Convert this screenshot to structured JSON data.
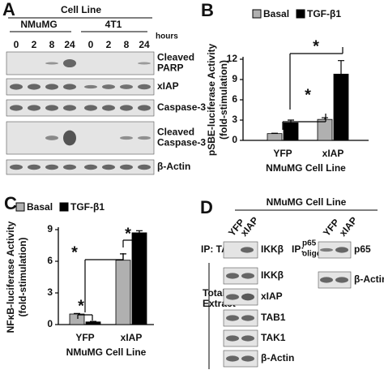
{
  "panel_a": {
    "letter": "A",
    "header": "Cell Line",
    "cell_lines": [
      "NMuMG",
      "4T1"
    ],
    "time_label": "hours",
    "times": [
      "0",
      "2",
      "8",
      "24",
      "0",
      "2",
      "8",
      "24"
    ],
    "blots": [
      [
        "Cleaved",
        "PARP"
      ],
      [
        "xIAP"
      ],
      [
        "Caspase-3"
      ],
      [
        "Cleaved",
        "Caspase-3"
      ],
      [
        "β-Actin"
      ]
    ]
  },
  "chart_data": [
    {
      "type": "bar",
      "letter": "B",
      "y_label": [
        "pSBE-luciferase Activity",
        "(fold-stimulation)"
      ],
      "x_label": "NMuMG Cell Line",
      "categories": [
        "YFP",
        "xIAP"
      ],
      "series": [
        {
          "name": "Basal",
          "color": "#b0b0b0",
          "values": [
            1.0,
            3.1
          ],
          "errors": [
            0.05,
            0.25
          ]
        },
        {
          "name": "TGF-β1",
          "color": "#000000",
          "values": [
            2.6,
            9.8
          ],
          "errors": [
            0.4,
            2.0
          ]
        }
      ],
      "ylim": [
        0,
        12
      ],
      "yticks": [
        0,
        3,
        6,
        9,
        12
      ],
      "annotations": [
        "*",
        "*"
      ]
    },
    {
      "type": "bar",
      "letter": "C",
      "y_label": [
        "NFκB-luciferase Activity",
        "(fold-stimulation)"
      ],
      "x_label": "NMuMG Cell Line",
      "categories": [
        "YFP",
        "xIAP"
      ],
      "series": [
        {
          "name": "Basal",
          "color": "#b0b0b0",
          "values": [
            1.0,
            6.1
          ],
          "errors": [
            0.05,
            0.6
          ]
        },
        {
          "name": "TGF-β1",
          "color": "#000000",
          "values": [
            0.25,
            8.7
          ],
          "errors": [
            0.05,
            0.2
          ]
        }
      ],
      "ylim": [
        0,
        9
      ],
      "yticks": [
        0,
        3,
        6,
        9
      ],
      "annotations": [
        "*",
        "*",
        "*"
      ]
    }
  ],
  "panel_d": {
    "letter": "D",
    "header": "NMuMG Cell Line",
    "lanes": [
      "YFP",
      "xIAP"
    ],
    "ip_label": "IP: TAB1",
    "ip_blot": "IKKβ",
    "extract_label": [
      "Total Cell",
      "Extract"
    ],
    "extract_blots": [
      "IKKβ",
      "xIAP",
      "TAB1",
      "TAK1",
      "β-Actin"
    ],
    "ip2_label": "IP:",
    "ip2_sup": "p65",
    "ip2_sub": "oligo",
    "ip2_blots": [
      "p65",
      "β-Actin"
    ]
  }
}
